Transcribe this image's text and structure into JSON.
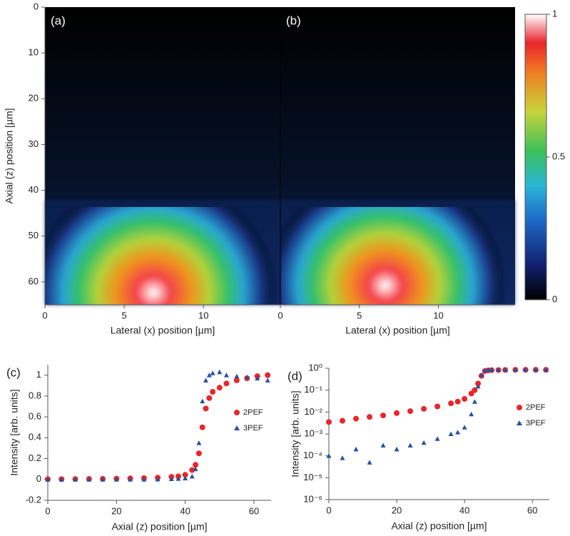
{
  "chart_data": [
    {
      "type": "heatmap",
      "panel_label": "(a)",
      "x_label": "Lateral (x) position [µm]",
      "y_label": "Axial (z) position [µm]",
      "xlim": [
        0,
        14.85
      ],
      "xticks": [
        0,
        5,
        10
      ],
      "ylim": [
        0,
        65
      ],
      "yticks": [
        0,
        10,
        20,
        30,
        40,
        50,
        60
      ],
      "y_inverted": true
    },
    {
      "type": "heatmap",
      "panel_label": "(b)",
      "x_label": "Lateral (x) position [µm]",
      "xlim": [
        0,
        14.85
      ],
      "xticks": [
        0,
        5,
        10
      ],
      "ylim": [
        0,
        65
      ],
      "y_inverted": true,
      "colorbar": {
        "clim": [
          0,
          1
        ],
        "ticks": [
          0,
          0.5,
          1
        ]
      }
    },
    {
      "type": "scatter",
      "panel_label": "(c)",
      "x_label": "Axial (z) position [µm]",
      "y_label": "Intensity [arb. units]",
      "xlim": [
        0,
        65
      ],
      "xticks": [
        0,
        20,
        40,
        60
      ],
      "ylim": [
        -0.2,
        1.1
      ],
      "yticks": [
        -0.2,
        0,
        0.2,
        0.4,
        0.6,
        0.8,
        1
      ],
      "legend": "center right",
      "x": [
        0,
        4,
        8,
        12,
        16,
        20,
        24,
        28,
        32,
        36,
        38,
        40,
        42,
        43,
        44,
        45,
        46,
        47,
        48,
        50,
        52,
        55,
        58,
        61,
        64
      ],
      "series": [
        {
          "name": "2PEF",
          "color": "#e8262b",
          "marker": "circle",
          "values": [
            0.003,
            0.003,
            0.004,
            0.005,
            0.006,
            0.008,
            0.01,
            0.013,
            0.017,
            0.025,
            0.03,
            0.045,
            0.09,
            0.14,
            0.25,
            0.5,
            0.68,
            0.78,
            0.84,
            0.88,
            0.92,
            0.95,
            0.97,
            0.99,
            1.0
          ]
        },
        {
          "name": "3PEF",
          "color": "#2a50a0",
          "marker": "triangle",
          "values": [
            0,
            0,
            0,
            0,
            0,
            0,
            0,
            0,
            0.002,
            0.005,
            0.008,
            0.012,
            0.03,
            0.1,
            0.35,
            0.75,
            0.95,
            1.0,
            1.02,
            1.03,
            1.0,
            0.99,
            0.98,
            0.97,
            0.95
          ]
        }
      ]
    },
    {
      "type": "scatter",
      "panel_label": "(d)",
      "x_label": "Axial (z) position [µm]",
      "y_label": "Intensity [arb. units]",
      "xlim": [
        0,
        65
      ],
      "xticks": [
        0,
        20,
        40,
        60
      ],
      "log_y": true,
      "ylim": [
        1e-06,
        1
      ],
      "yticks": [
        {
          "value": 1,
          "label": "10⁰"
        },
        {
          "value": 0.1,
          "label": "10⁻¹"
        },
        {
          "value": 0.01,
          "label": "10⁻²"
        },
        {
          "value": 0.001,
          "label": "10⁻³"
        },
        {
          "value": 0.0001,
          "label": "10⁻⁴"
        },
        {
          "value": 1e-05,
          "label": "10⁻⁵"
        },
        {
          "value": 1e-06,
          "label": "10⁻⁶"
        }
      ],
      "legend": "upper right",
      "x": [
        0,
        4,
        8,
        12,
        16,
        20,
        24,
        28,
        32,
        36,
        38,
        40,
        42,
        43,
        44,
        45,
        46,
        47,
        48,
        50,
        52,
        55,
        58,
        61,
        64
      ],
      "series": [
        {
          "name": "2PEF",
          "color": "#e8262b",
          "marker": "circle",
          "values": [
            0.0035,
            0.004,
            0.005,
            0.006,
            0.007,
            0.009,
            0.011,
            0.014,
            0.018,
            0.025,
            0.03,
            0.04,
            0.07,
            0.1,
            0.2,
            0.45,
            0.75,
            0.8,
            0.82,
            0.83,
            0.84,
            0.85,
            0.85,
            0.85,
            0.85
          ]
        },
        {
          "name": "3PEF",
          "color": "#2a50a0",
          "marker": "triangle",
          "values": [
            0.0001,
            8e-05,
            0.0002,
            5e-05,
            0.0003,
            0.0002,
            0.0003,
            0.0004,
            0.0006,
            0.001,
            0.0012,
            0.002,
            0.008,
            0.03,
            0.15,
            0.5,
            0.8,
            0.85,
            0.86,
            0.86,
            0.86,
            0.86,
            0.86,
            0.86,
            0.86
          ]
        }
      ]
    }
  ]
}
